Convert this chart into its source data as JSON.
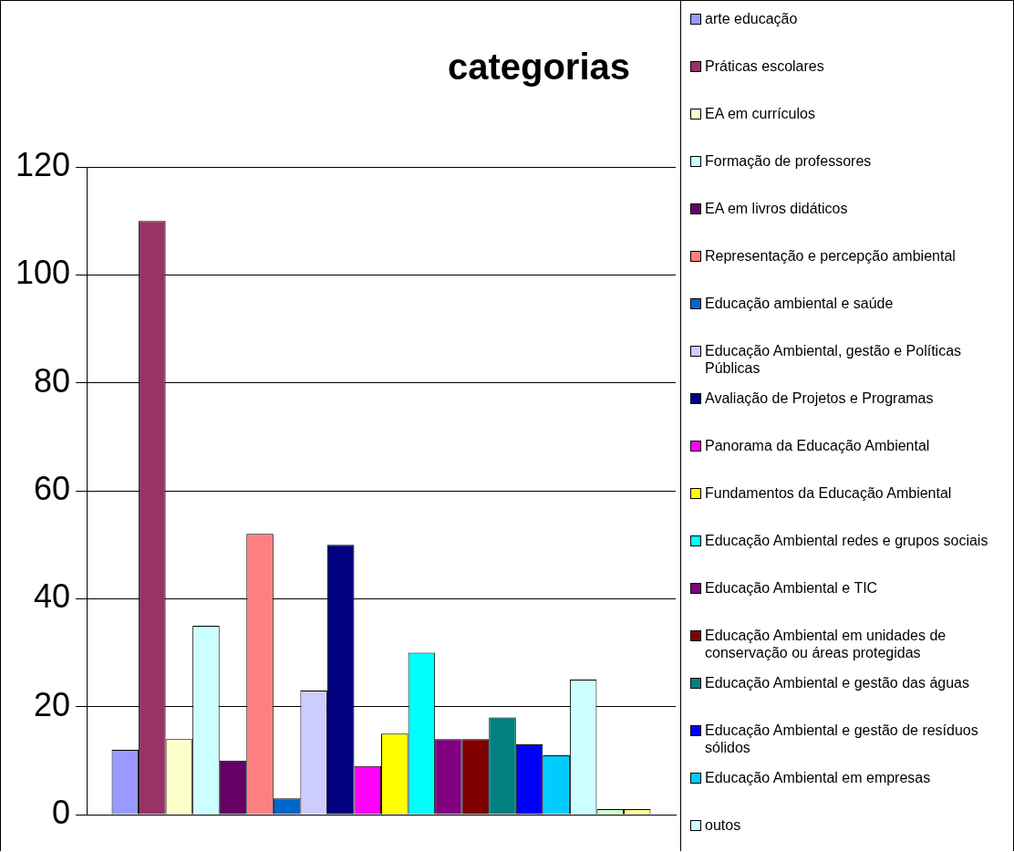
{
  "chart_data": {
    "type": "bar",
    "title": "categorias",
    "categories": [
      null
    ],
    "ylim": [
      0,
      120
    ],
    "yticks": [
      0,
      20,
      40,
      60,
      80,
      100,
      120
    ],
    "grid": "y",
    "tick_labels": "y",
    "legend": "right",
    "series": [
      {
        "name": "arte educação",
        "color": "#9999ff",
        "values": [
          12
        ]
      },
      {
        "name": "Práticas escolares",
        "color": "#993366",
        "values": [
          110
        ]
      },
      {
        "name": "EA em currículos",
        "color": "#ffffcc",
        "values": [
          14
        ]
      },
      {
        "name": "Formação de professores",
        "color": "#ccffff",
        "values": [
          35
        ]
      },
      {
        "name": "EA em livros didáticos",
        "color": "#660066",
        "values": [
          10
        ]
      },
      {
        "name": "Representação e percepção ambiental",
        "color": "#ff8080",
        "values": [
          52
        ]
      },
      {
        "name": "Educação ambiental e saúde",
        "color": "#0066cc",
        "values": [
          3
        ]
      },
      {
        "name": "Educação Ambiental, gestão e Políticas Públicas",
        "color": "#ccccff",
        "values": [
          23
        ]
      },
      {
        "name": "Avaliação de Projetos e Programas",
        "color": "#000080",
        "values": [
          50
        ]
      },
      {
        "name": "Panorama da Educação Ambiental",
        "color": "#ff00ff",
        "values": [
          9
        ]
      },
      {
        "name": "Fundamentos da Educação Ambiental",
        "color": "#ffff00",
        "values": [
          15
        ]
      },
      {
        "name": "Educação Ambiental redes e grupos sociais",
        "color": "#00ffff",
        "values": [
          30
        ]
      },
      {
        "name": "Educação Ambiental e TIC",
        "color": "#800080",
        "values": [
          14
        ]
      },
      {
        "name": "Educação Ambiental em unidades de conservação ou áreas protegidas",
        "color": "#800000",
        "values": [
          14
        ]
      },
      {
        "name": "Educação Ambiental e gestão das águas",
        "color": "#008080",
        "values": [
          18
        ]
      },
      {
        "name": "Educação Ambiental e gestão de resíduos sólidos",
        "color": "#0000ff",
        "values": [
          13
        ]
      },
      {
        "name": "Educação Ambiental em empresas",
        "color": "#00ccff",
        "values": [
          11
        ]
      },
      {
        "name": "outos",
        "color": "#ccffff",
        "values": [
          25
        ]
      },
      {
        "color": "#ccffcc",
        "values": [
          1
        ]
      },
      {
        "color": "#ffff99",
        "values": [
          1
        ]
      }
    ]
  }
}
